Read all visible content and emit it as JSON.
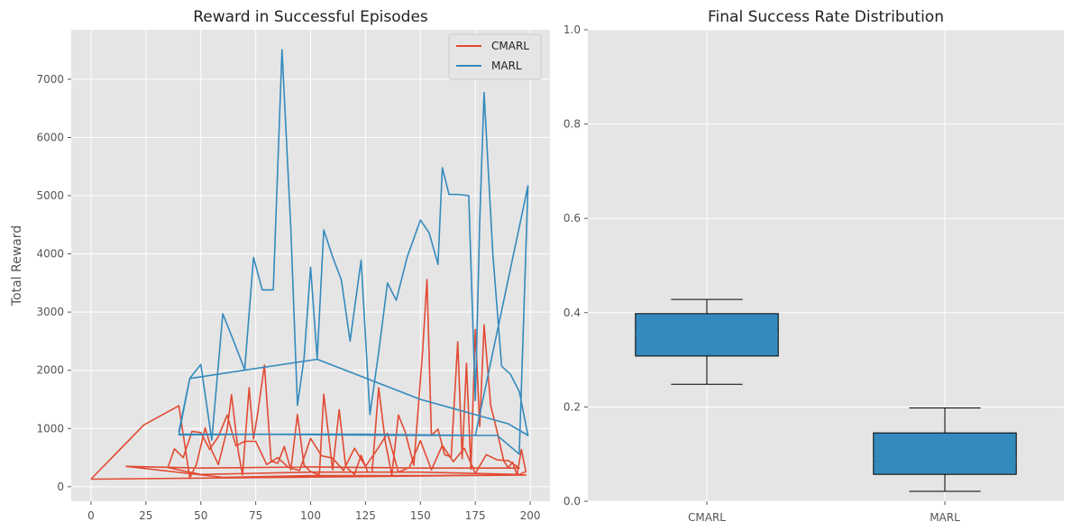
{
  "colors": {
    "background": "#e5e5e5",
    "cmarl": "#e24a33",
    "marl": "#348abd",
    "box_fill": "#348abd"
  },
  "chart_data": [
    {
      "type": "line",
      "title": "Reward in Successful Episodes",
      "xlabel": "",
      "ylabel": "Total Reward",
      "xlim": [
        -9,
        209
      ],
      "ylim": [
        -250,
        7850
      ],
      "xticks": [
        0,
        25,
        50,
        75,
        100,
        125,
        150,
        175,
        200
      ],
      "yticks": [
        0,
        1000,
        2000,
        3000,
        4000,
        5000,
        6000,
        7000
      ],
      "grid": true,
      "legend": "top-right",
      "series": [
        {
          "name": "CMARL",
          "color": "#e24a33",
          "x": [
            0,
            24,
            40,
            45,
            48,
            52,
            55,
            58,
            62,
            64,
            67,
            69,
            72,
            74,
            76,
            79,
            82,
            85,
            88,
            91,
            94,
            97,
            100,
            104,
            106,
            110,
            113,
            116,
            120,
            123,
            126,
            128,
            131,
            134,
            137,
            140,
            143,
            147,
            151,
            153,
            155,
            158,
            161,
            164,
            167,
            169,
            171,
            173,
            175,
            177,
            179,
            182,
            185,
            188,
            190,
            192,
            194,
            196,
            198,
            195,
            150,
            100,
            50,
            35,
            38,
            42,
            46,
            50,
            54,
            58,
            62,
            66,
            70,
            75,
            80,
            85,
            90,
            95,
            100,
            105,
            110,
            115,
            120,
            125,
            130,
            135,
            140,
            145,
            150,
            155,
            160,
            165,
            170,
            175,
            180,
            185,
            190,
            195,
            150,
            100,
            50,
            16,
            60,
            100,
            150,
            198,
            0
          ],
          "y": [
            130,
            1060,
            1390,
            150,
            380,
            1010,
            620,
            380,
            980,
            1580,
            620,
            200,
            1700,
            820,
            1280,
            2090,
            440,
            400,
            690,
            290,
            1240,
            370,
            260,
            200,
            1590,
            290,
            1320,
            340,
            210,
            540,
            250,
            250,
            1700,
            780,
            200,
            1230,
            950,
            370,
            2320,
            3560,
            880,
            990,
            550,
            510,
            2490,
            480,
            2120,
            300,
            2700,
            1030,
            2780,
            1400,
            940,
            440,
            330,
            420,
            200,
            640,
            260,
            210,
            250,
            250,
            210,
            330,
            650,
            500,
            950,
            930,
            640,
            860,
            1230,
            700,
            780,
            780,
            380,
            500,
            330,
            280,
            830,
            530,
            490,
            280,
            660,
            350,
            620,
            920,
            250,
            330,
            790,
            290,
            710,
            430,
            660,
            230,
            550,
            460,
            450,
            320,
            320,
            340,
            320,
            350,
            160,
            190,
            190,
            200,
            130
          ]
        },
        {
          "name": "MARL",
          "color": "#348abd",
          "x": [
            40,
            45,
            50,
            55,
            60,
            65,
            70,
            74,
            78,
            83,
            87,
            91,
            94,
            97,
            100,
            103,
            106,
            110,
            114,
            118,
            123,
            127,
            131,
            135,
            139,
            144,
            150,
            154,
            158,
            160,
            163,
            167,
            172,
            175,
            177,
            179,
            183,
            187,
            191,
            195,
            199,
            190,
            150,
            103,
            45,
            40,
            75,
            125,
            175,
            199,
            195,
            185,
            150,
            75,
            40
          ],
          "y": [
            950,
            1860,
            2100,
            800,
            2970,
            2500,
            2010,
            3940,
            3380,
            3380,
            7510,
            4420,
            1400,
            2200,
            3770,
            2200,
            4410,
            3950,
            3550,
            2500,
            3890,
            1240,
            2310,
            3500,
            3200,
            3950,
            4580,
            4360,
            3820,
            5480,
            5020,
            5020,
            5000,
            1480,
            4560,
            6770,
            3980,
            2070,
            1930,
            1640,
            880,
            1080,
            1500,
            2190,
            1860,
            900,
            900,
            900,
            880,
            5170,
            560,
            880,
            880,
            900,
            890
          ]
        }
      ]
    },
    {
      "type": "box",
      "title": "Final Success Rate Distribution",
      "xlabel": "",
      "ylabel": "",
      "ylim": [
        0,
        1
      ],
      "yticks": [
        "0.0",
        "0.2",
        "0.4",
        "0.6",
        "0.8",
        "1.0"
      ],
      "grid": true,
      "categories": [
        "CMARL",
        "MARL"
      ],
      "boxes": [
        {
          "name": "CMARL",
          "whisker_low": 0.248,
          "q1": 0.308,
          "median": 0.355,
          "q3": 0.398,
          "whisker_high": 0.428
        },
        {
          "name": "MARL",
          "whisker_low": 0.021,
          "q1": 0.057,
          "median": 0.09,
          "q3": 0.145,
          "whisker_high": 0.198
        }
      ]
    }
  ]
}
